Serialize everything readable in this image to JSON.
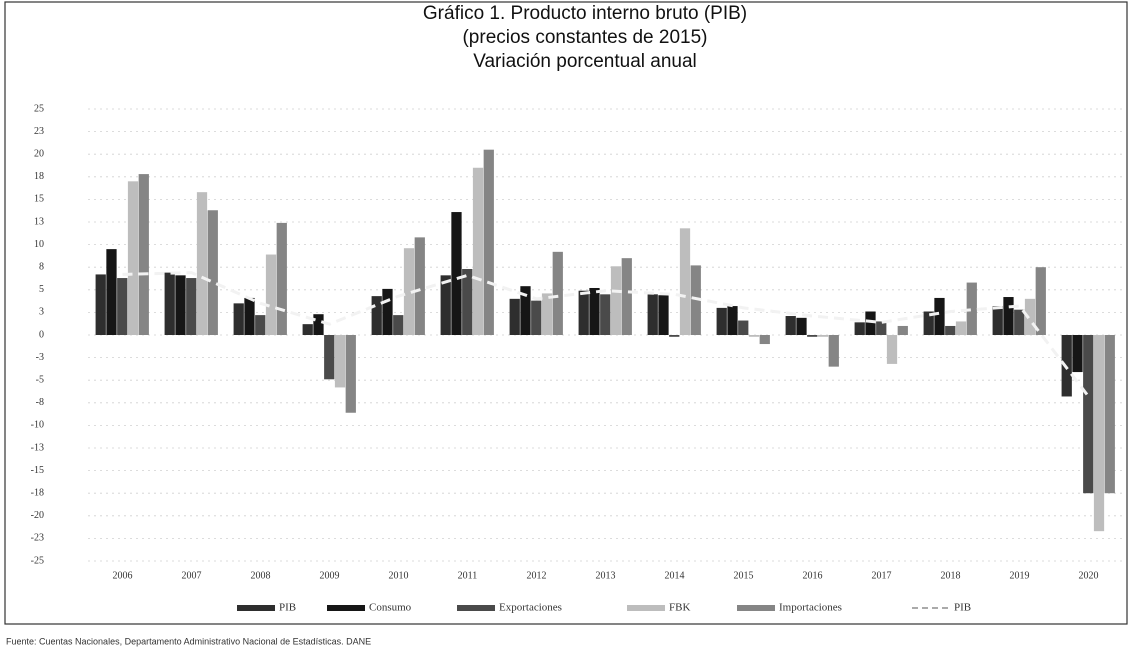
{
  "chart_data": {
    "type": "bar",
    "title": [
      "Gráfico 1. Producto interno bruto (PIB)",
      "(precios constantes de 2015)",
      "Variación porcentual anual"
    ],
    "categories": [
      "2006",
      "2007",
      "2008",
      "2009",
      "2010",
      "2011",
      "2012",
      "2013",
      "2014",
      "2015",
      "2016",
      "2017",
      "2018",
      "2019",
      "2020"
    ],
    "series": [
      {
        "name": "PIB",
        "color": "#2e2e2e",
        "values": [
          6.7,
          6.9,
          3.5,
          1.2,
          4.3,
          6.6,
          4.0,
          4.9,
          4.5,
          3.0,
          2.1,
          1.4,
          2.6,
          3.2,
          -6.8
        ]
      },
      {
        "name": "Consumo",
        "color": "#161616",
        "values": [
          9.5,
          6.6,
          4.1,
          2.3,
          5.1,
          13.6,
          5.4,
          5.2,
          4.4,
          3.2,
          1.9,
          2.6,
          4.1,
          4.2,
          -4.1
        ]
      },
      {
        "name": "Exportaciones",
        "color": "#4a4a4a",
        "values": [
          6.3,
          6.3,
          2.2,
          -4.9,
          2.2,
          7.3,
          3.8,
          4.5,
          -0.2,
          1.6,
          -0.2,
          1.5,
          1.0,
          2.8,
          -17.5
        ]
      },
      {
        "name": "FBK",
        "color": "#bdbdbd",
        "values": [
          17.0,
          15.8,
          8.9,
          -5.8,
          9.6,
          18.5,
          4.6,
          7.6,
          11.8,
          -0.2,
          -0.2,
          -3.2,
          1.5,
          4.0,
          -21.7
        ]
      },
      {
        "name": "Importaciones",
        "color": "#858585",
        "values": [
          17.8,
          13.8,
          12.4,
          -8.6,
          10.8,
          20.5,
          9.2,
          8.5,
          7.7,
          -1.0,
          -3.5,
          1.0,
          5.8,
          7.5,
          -17.5
        ]
      },
      {
        "name": "PIB",
        "type": "line",
        "color": "#f2f2f2",
        "values": [
          6.7,
          6.9,
          3.5,
          1.2,
          4.3,
          6.6,
          4.0,
          4.9,
          4.5,
          3.0,
          2.1,
          1.4,
          2.6,
          3.2,
          -6.8
        ]
      }
    ],
    "ylim": [
      -25,
      25
    ],
    "yticks": [
      25,
      {
        "value": 22.5,
        "label": "23"
      },
      20,
      {
        "value": 17.5,
        "label": "18"
      },
      15,
      {
        "value": 12.5,
        "label": "13"
      },
      10,
      {
        "value": 7.5,
        "label": "8"
      },
      5,
      {
        "value": 2.5,
        "label": "3"
      },
      0,
      {
        "value": -2.5,
        "label": "-3"
      },
      -5,
      {
        "value": -7.5,
        "label": "-8"
      },
      -10,
      {
        "value": -12.5,
        "label": "-13"
      },
      -15,
      {
        "value": -17.5,
        "label": "-18"
      },
      -20,
      {
        "value": -22.5,
        "label": "-23"
      },
      -25
    ],
    "grid": true,
    "legend": "bottom",
    "source": "Fuente: Cuentas Nacionales, Departamento Administrativo Nacional de Estadísticas. DANE"
  }
}
